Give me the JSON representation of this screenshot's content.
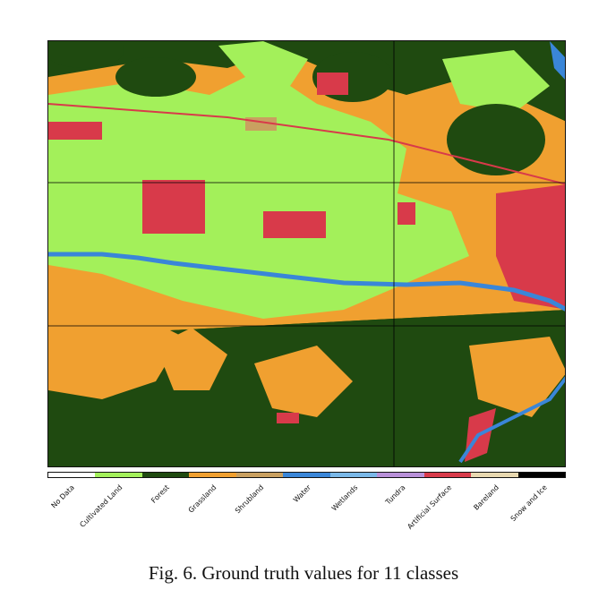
{
  "figure": {
    "caption": "Fig. 6.  Ground truth values for 11 classes"
  },
  "legend": {
    "classes": [
      {
        "label": "No Data",
        "color": "#ffffff"
      },
      {
        "label": "Cultivated Land",
        "color": "#a3f05a"
      },
      {
        "label": "Forest",
        "color": "#1f4a10"
      },
      {
        "label": "Grassland",
        "color": "#f0a030"
      },
      {
        "label": "Shrubland",
        "color": "#c9a060"
      },
      {
        "label": "Water",
        "color": "#3a86d8"
      },
      {
        "label": "Wetlands",
        "color": "#7ab8e8"
      },
      {
        "label": "Tundra",
        "color": "#b890d8"
      },
      {
        "label": "Artificial Surface",
        "color": "#d83a4a"
      },
      {
        "label": "Bareland",
        "color": "#e8d8b0"
      },
      {
        "label": "Snow and Ice",
        "color": "#000000"
      }
    ]
  }
}
